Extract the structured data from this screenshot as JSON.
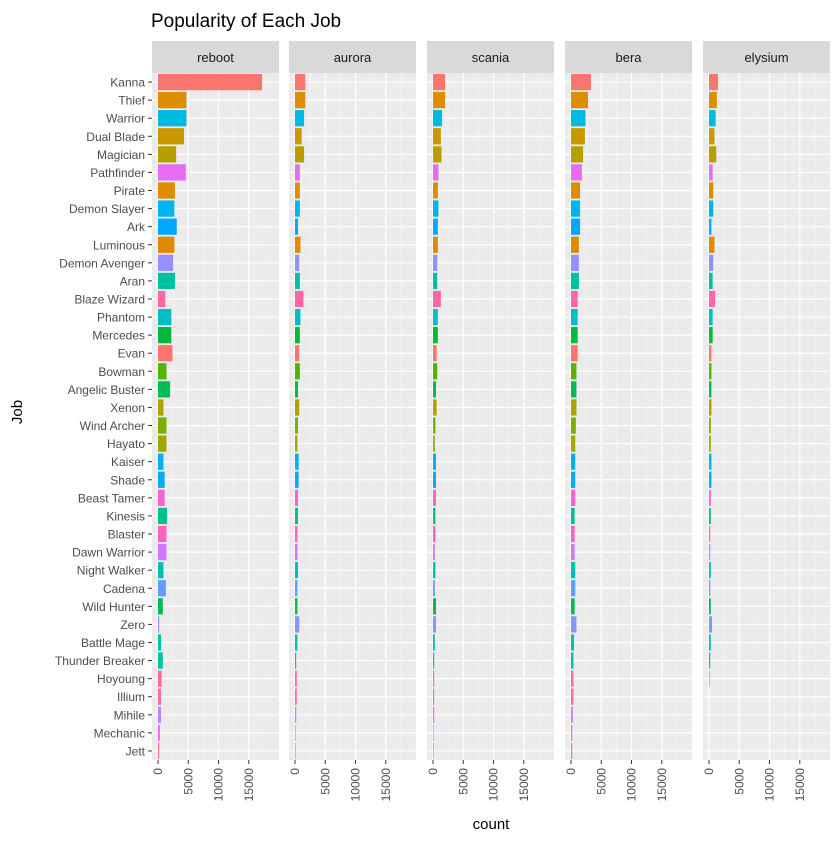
{
  "chart_data": {
    "type": "bar",
    "orientation": "horizontal",
    "faceted": true,
    "title": "Popularity of Each Job",
    "xlabel": "count",
    "ylabel": "Job",
    "xlim": [
      0,
      19000
    ],
    "xticks": [
      0,
      5000,
      10000,
      15000
    ],
    "xtick_labels": [
      "0",
      "5000",
      "10000",
      "15000"
    ],
    "grid": true,
    "legend": "none",
    "facets": [
      "reboot",
      "aurora",
      "scania",
      "bera",
      "elysium"
    ],
    "categories": [
      "Kanna",
      "Thief",
      "Warrior",
      "Dual Blade",
      "Magician",
      "Pathfinder",
      "Pirate",
      "Demon Slayer",
      "Ark",
      "Luminous",
      "Demon Avenger",
      "Aran",
      "Blaze Wizard",
      "Phantom",
      "Mercedes",
      "Evan",
      "Bowman",
      "Angelic Buster",
      "Xenon",
      "Wind Archer",
      "Hayato",
      "Kaiser",
      "Shade",
      "Beast Tamer",
      "Kinesis",
      "Blaster",
      "Dawn Warrior",
      "Night Walker",
      "Cadena",
      "Wild Hunter",
      "Zero",
      "Battle Mage",
      "Thunder Breaker",
      "Hoyoung",
      "Illium",
      "Mihile",
      "Mechanic",
      "Jett"
    ],
    "colors": [
      "#F8766D",
      "#DE8C00",
      "#00BAE0",
      "#C99800",
      "#B79F00",
      "#E76BF3",
      "#DE8C00",
      "#00B4EF",
      "#00A9FF",
      "#E38900",
      "#9590FF",
      "#00C19F",
      "#FF67A4",
      "#00BFC4",
      "#00BA38",
      "#F8766D",
      "#53B400",
      "#00BC56",
      "#AEA200",
      "#7CAE00",
      "#A3A500",
      "#00B0F6",
      "#00ABFD",
      "#FD61D1",
      "#00C08B",
      "#FF61C3",
      "#D575FE",
      "#00C0AF",
      "#619CFF",
      "#00BC56",
      "#8B93FF",
      "#00C1AA",
      "#00C1A3",
      "#FF6C91",
      "#FF6A98",
      "#B385FF",
      "#EF67EB",
      "#FF699C"
    ],
    "series": [
      {
        "name": "reboot",
        "values": [
          17200,
          4700,
          4700,
          4300,
          3000,
          4600,
          2800,
          2700,
          3100,
          2700,
          2500,
          2800,
          1200,
          2200,
          2200,
          2400,
          1400,
          2000,
          900,
          1400,
          1400,
          900,
          1100,
          1100,
          1500,
          1400,
          1400,
          900,
          1300,
          800,
          200,
          500,
          800,
          600,
          500,
          500,
          300,
          200
        ]
      },
      {
        "name": "aurora",
        "values": [
          1700,
          1700,
          1500,
          1100,
          1500,
          800,
          800,
          800,
          500,
          900,
          700,
          800,
          1400,
          900,
          800,
          700,
          800,
          500,
          700,
          500,
          400,
          600,
          600,
          500,
          500,
          400,
          400,
          500,
          400,
          400,
          700,
          400,
          200,
          300,
          300,
          200,
          100,
          100
        ]
      },
      {
        "name": "scania",
        "values": [
          2000,
          2000,
          1500,
          1300,
          1400,
          900,
          800,
          900,
          800,
          800,
          700,
          700,
          1300,
          800,
          800,
          600,
          700,
          500,
          600,
          400,
          300,
          500,
          500,
          500,
          400,
          400,
          300,
          400,
          300,
          500,
          500,
          300,
          200,
          200,
          200,
          200,
          100,
          100
        ]
      },
      {
        "name": "bera",
        "values": [
          3300,
          2800,
          2400,
          2300,
          2000,
          1800,
          1500,
          1500,
          1500,
          1300,
          1300,
          1300,
          1100,
          1100,
          1100,
          1100,
          900,
          900,
          900,
          800,
          700,
          700,
          700,
          700,
          600,
          600,
          600,
          700,
          700,
          600,
          900,
          500,
          400,
          400,
          400,
          300,
          200,
          200
        ]
      },
      {
        "name": "elysium",
        "values": [
          1500,
          1300,
          1100,
          900,
          1200,
          600,
          700,
          700,
          400,
          900,
          700,
          600,
          1000,
          600,
          600,
          400,
          400,
          400,
          400,
          300,
          300,
          400,
          400,
          300,
          300,
          200,
          200,
          300,
          200,
          300,
          500,
          300,
          200,
          100,
          0,
          0,
          0,
          0
        ]
      }
    ]
  }
}
